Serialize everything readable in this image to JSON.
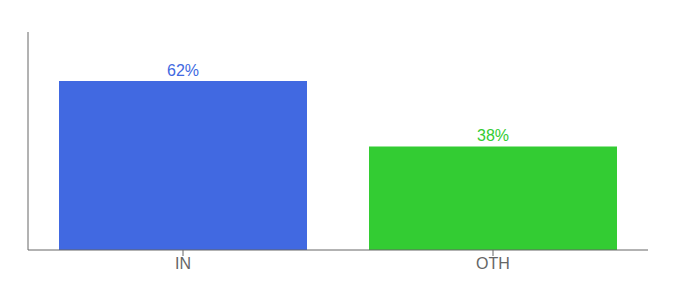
{
  "chart_data": {
    "type": "bar",
    "categories": [
      "IN",
      "OTH"
    ],
    "values": [
      62,
      38
    ],
    "value_labels": [
      "62%",
      "38%"
    ],
    "colors": [
      "#4169e1",
      "#33cc33"
    ],
    "ylim": [
      0,
      80
    ],
    "grid": false,
    "data_labels": true,
    "tick_labels": "x"
  }
}
